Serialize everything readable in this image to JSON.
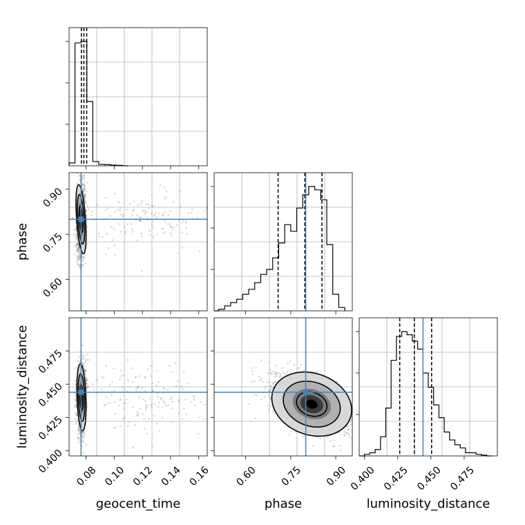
{
  "chart_data": {
    "type": "corner",
    "parameters": [
      {
        "name": "geocent_time",
        "label": "geocent_time",
        "range": [
          0.068,
          0.166
        ],
        "ticks": [
          "0.08",
          "0.10",
          "0.12",
          "0.14",
          "0.16"
        ],
        "truth": 0.0765,
        "quantiles": [
          0.0767,
          0.0785,
          0.0805
        ],
        "hist": {
          "edges": [
            0.068,
            0.0722,
            0.0764,
            0.0806,
            0.0848,
            0.089,
            0.0932,
            0.0974,
            0.1016,
            0.1058,
            0.11
          ],
          "counts": [
            0.02,
            0.86,
            0.87,
            0.45,
            0.03,
            0.01,
            0.008,
            0.005,
            0.003,
            0
          ]
        }
      },
      {
        "name": "phase",
        "label": "phase",
        "range": [
          0.495,
          0.955
        ],
        "ticks": [
          "0.60",
          "0.75",
          "0.90"
        ],
        "ticks_2d_y": [
          "0.60",
          "0.75",
          "0.90"
        ],
        "truth": 0.8,
        "quantiles": [
          0.708,
          0.797,
          0.854
        ],
        "hist": {
          "edges": [
            0.51,
            0.53,
            0.55,
            0.57,
            0.59,
            0.61,
            0.63,
            0.65,
            0.67,
            0.69,
            0.71,
            0.73,
            0.75,
            0.77,
            0.79,
            0.81,
            0.83,
            0.85,
            0.87,
            0.89,
            0.91,
            0.93
          ],
          "counts": [
            0.01,
            0.03,
            0.05,
            0.07,
            0.1,
            0.13,
            0.17,
            0.22,
            0.25,
            0.32,
            0.41,
            0.52,
            0.48,
            0.62,
            0.7,
            0.75,
            0.73,
            0.67,
            0.4,
            0.1,
            0.02
          ]
        }
      },
      {
        "name": "luminosity_distance",
        "label": "luminosity_distance",
        "range": [
          0.396,
          0.5
        ],
        "ticks": [
          "0.400",
          "0.425",
          "0.450",
          "0.475"
        ],
        "ticks_2d_y": [
          "0.400",
          "0.425",
          "0.450",
          "0.475"
        ],
        "truth": 0.444,
        "quantiles": [
          0.4265,
          0.4375,
          0.4505
        ],
        "hist": {
          "edges": [
            0.4,
            0.404,
            0.408,
            0.412,
            0.416,
            0.42,
            0.424,
            0.428,
            0.432,
            0.436,
            0.44,
            0.444,
            0.448,
            0.452,
            0.456,
            0.46,
            0.464,
            0.468,
            0.472,
            0.476,
            0.48,
            0.484,
            0.488,
            0.492,
            0.496
          ],
          "counts": [
            0.01,
            0.02,
            0.04,
            0.12,
            0.3,
            0.6,
            0.75,
            0.78,
            0.76,
            0.72,
            0.67,
            0.52,
            0.43,
            0.32,
            0.24,
            0.15,
            0.1,
            0.07,
            0.05,
            0.02,
            0.02,
            0.01,
            0.005,
            0
          ]
        }
      }
    ],
    "scatter_2d": [
      {
        "x": "geocent_time",
        "y": "phase",
        "mode": {
          "x": 0.0765,
          "y": 0.8
        },
        "spread": {
          "x": 0.0015,
          "y": 0.055
        },
        "corr": 0.1
      },
      {
        "x": "geocent_time",
        "y": "luminosity_distance",
        "mode": {
          "x": 0.0768,
          "y": 0.44
        },
        "spread": {
          "x": 0.0015,
          "y": 0.012
        },
        "corr": 0.05
      },
      {
        "x": "phase",
        "y": "luminosity_distance",
        "mode": {
          "x": 0.82,
          "y": 0.435
        },
        "spread": {
          "x": 0.065,
          "y": 0.011
        },
        "corr": -0.5
      }
    ],
    "grid": true,
    "truth_color": "#4682b4",
    "hist_color": "#000000"
  }
}
